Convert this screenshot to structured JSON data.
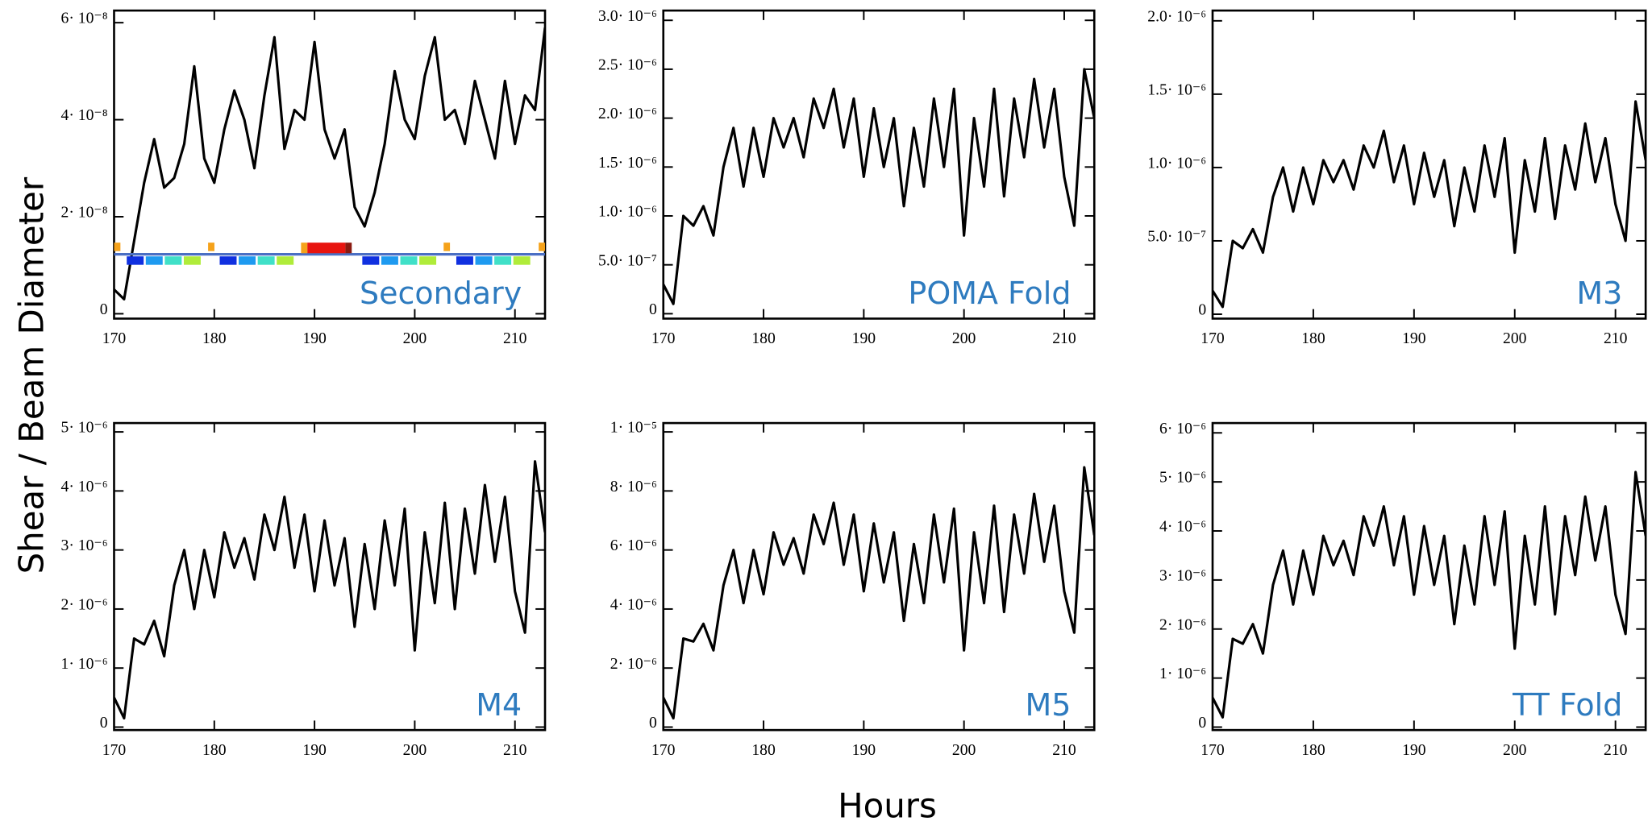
{
  "y_label": "Shear / Beam Diameter",
  "x_label": "Hours",
  "chart_data": [
    {
      "type": "line",
      "title": "Secondary",
      "color": "#000000",
      "x": [
        170,
        171,
        172,
        173,
        174,
        175,
        176,
        177,
        178,
        179,
        180,
        181,
        182,
        183,
        184,
        185,
        186,
        187,
        188,
        189,
        190,
        191,
        192,
        193,
        194,
        195,
        196,
        197,
        198,
        199,
        200,
        201,
        202,
        203,
        204,
        205,
        206,
        207,
        208,
        209,
        210,
        211,
        212,
        213
      ],
      "values": [
        5e-09,
        3e-09,
        1.5e-08,
        2.7e-08,
        3.6e-08,
        2.6e-08,
        2.8e-08,
        3.5e-08,
        5.1e-08,
        3.2e-08,
        2.7e-08,
        3.8e-08,
        4.6e-08,
        4e-08,
        3e-08,
        4.5e-08,
        5.7e-08,
        3.4e-08,
        4.2e-08,
        4e-08,
        5.6e-08,
        3.8e-08,
        3.2e-08,
        3.8e-08,
        2.2e-08,
        1.8e-08,
        2.5e-08,
        3.5e-08,
        5e-08,
        4e-08,
        3.6e-08,
        4.9e-08,
        5.7e-08,
        4e-08,
        4.2e-08,
        3.5e-08,
        4.8e-08,
        4e-08,
        3.2e-08,
        4.8e-08,
        3.5e-08,
        4.5e-08,
        4.2e-08,
        5.9e-08
      ],
      "xlim": [
        170,
        213
      ],
      "xticks": [
        170,
        180,
        190,
        200,
        210
      ],
      "ylim": [
        -1e-09,
        6.25e-08
      ],
      "yticks": [
        0,
        {
          "value": 2e-08,
          "label": "2· 10⁻⁸"
        },
        {
          "value": 4e-08,
          "label": "4· 10⁻⁸"
        },
        {
          "value": 6e-08,
          "label": "6· 10⁻⁸"
        }
      ]
    },
    {
      "type": "line",
      "title": "POMA Fold",
      "color": "#000000",
      "x": [
        170,
        171,
        172,
        173,
        174,
        175,
        176,
        177,
        178,
        179,
        180,
        181,
        182,
        183,
        184,
        185,
        186,
        187,
        188,
        189,
        190,
        191,
        192,
        193,
        194,
        195,
        196,
        197,
        198,
        199,
        200,
        201,
        202,
        203,
        204,
        205,
        206,
        207,
        208,
        209,
        210,
        211,
        212,
        213
      ],
      "values": [
        3e-07,
        1e-07,
        1e-06,
        9e-07,
        1.1e-06,
        8e-07,
        1.5e-06,
        1.9e-06,
        1.3e-06,
        1.9e-06,
        1.4e-06,
        2e-06,
        1.7e-06,
        2e-06,
        1.6e-06,
        2.2e-06,
        1.9e-06,
        2.3e-06,
        1.7e-06,
        2.2e-06,
        1.4e-06,
        2.1e-06,
        1.5e-06,
        2e-06,
        1.1e-06,
        1.9e-06,
        1.3e-06,
        2.2e-06,
        1.5e-06,
        2.3e-06,
        8e-07,
        2e-06,
        1.3e-06,
        2.3e-06,
        1.2e-06,
        2.2e-06,
        1.6e-06,
        2.4e-06,
        1.7e-06,
        2.3e-06,
        1.4e-06,
        9e-07,
        2.5e-06,
        2e-06
      ],
      "xlim": [
        170,
        213
      ],
      "xticks": [
        170,
        180,
        190,
        200,
        210
      ],
      "ylim": [
        -5e-08,
        3.1e-06
      ],
      "yticks": [
        0,
        {
          "value": 5e-07,
          "label": "5.0· 10⁻⁷"
        },
        {
          "value": 1e-06,
          "label": "1.0· 10⁻⁶"
        },
        {
          "value": 1.5e-06,
          "label": "1.5· 10⁻⁶"
        },
        {
          "value": 2e-06,
          "label": "2.0· 10⁻⁶"
        },
        {
          "value": 2.5e-06,
          "label": "2.5· 10⁻⁶"
        },
        {
          "value": 3e-06,
          "label": "3.0· 10⁻⁶"
        }
      ]
    },
    {
      "type": "line",
      "title": "M3",
      "color": "#000000",
      "x": [
        170,
        171,
        172,
        173,
        174,
        175,
        176,
        177,
        178,
        179,
        180,
        181,
        182,
        183,
        184,
        185,
        186,
        187,
        188,
        189,
        190,
        191,
        192,
        193,
        194,
        195,
        196,
        197,
        198,
        199,
        200,
        201,
        202,
        203,
        204,
        205,
        206,
        207,
        208,
        209,
        210,
        211,
        212,
        213
      ],
      "values": [
        1.6e-07,
        5e-08,
        5e-07,
        4.5e-07,
        5.8e-07,
        4.2e-07,
        8e-07,
        1e-06,
        7e-07,
        1e-06,
        7.5e-07,
        1.05e-06,
        9e-07,
        1.05e-06,
        8.5e-07,
        1.15e-06,
        1e-06,
        1.25e-06,
        9e-07,
        1.15e-06,
        7.5e-07,
        1.1e-06,
        8e-07,
        1.05e-06,
        6e-07,
        1e-06,
        7e-07,
        1.15e-06,
        8e-07,
        1.2e-06,
        4.2e-07,
        1.05e-06,
        7e-07,
        1.2e-06,
        6.5e-07,
        1.15e-06,
        8.5e-07,
        1.3e-06,
        9e-07,
        1.2e-06,
        7.5e-07,
        5e-07,
        1.45e-06,
        1.05e-06
      ],
      "xlim": [
        170,
        213
      ],
      "xticks": [
        170,
        180,
        190,
        200,
        210
      ],
      "ylim": [
        -3e-08,
        2.07e-06
      ],
      "yticks": [
        0,
        {
          "value": 5e-07,
          "label": "5.0· 10⁻⁷"
        },
        {
          "value": 1e-06,
          "label": "1.0· 10⁻⁶"
        },
        {
          "value": 1.5e-06,
          "label": "1.5· 10⁻⁶"
        },
        {
          "value": 2e-06,
          "label": "2.0· 10⁻⁶"
        }
      ]
    },
    {
      "type": "line",
      "title": "M4",
      "color": "#000000",
      "x": [
        170,
        171,
        172,
        173,
        174,
        175,
        176,
        177,
        178,
        179,
        180,
        181,
        182,
        183,
        184,
        185,
        186,
        187,
        188,
        189,
        190,
        191,
        192,
        193,
        194,
        195,
        196,
        197,
        198,
        199,
        200,
        201,
        202,
        203,
        204,
        205,
        206,
        207,
        208,
        209,
        210,
        211,
        212,
        213
      ],
      "values": [
        5e-07,
        1.5e-07,
        1.5e-06,
        1.4e-06,
        1.8e-06,
        1.2e-06,
        2.4e-06,
        3e-06,
        2e-06,
        3e-06,
        2.2e-06,
        3.3e-06,
        2.7e-06,
        3.2e-06,
        2.5e-06,
        3.6e-06,
        3e-06,
        3.9e-06,
        2.7e-06,
        3.6e-06,
        2.3e-06,
        3.5e-06,
        2.4e-06,
        3.2e-06,
        1.7e-06,
        3.1e-06,
        2e-06,
        3.5e-06,
        2.4e-06,
        3.7e-06,
        1.3e-06,
        3.3e-06,
        2.1e-06,
        3.8e-06,
        2e-06,
        3.7e-06,
        2.6e-06,
        4.1e-06,
        2.8e-06,
        3.9e-06,
        2.3e-06,
        1.6e-06,
        4.5e-06,
        3.3e-06
      ],
      "xlim": [
        170,
        213
      ],
      "xticks": [
        170,
        180,
        190,
        200,
        210
      ],
      "ylim": [
        -5e-08,
        5.15e-06
      ],
      "yticks": [
        0,
        {
          "value": 1e-06,
          "label": "1· 10⁻⁶"
        },
        {
          "value": 2e-06,
          "label": "2· 10⁻⁶"
        },
        {
          "value": 3e-06,
          "label": "3· 10⁻⁶"
        },
        {
          "value": 4e-06,
          "label": "4· 10⁻⁶"
        },
        {
          "value": 5e-06,
          "label": "5· 10⁻⁶"
        }
      ]
    },
    {
      "type": "line",
      "title": "M5",
      "color": "#000000",
      "x": [
        170,
        171,
        172,
        173,
        174,
        175,
        176,
        177,
        178,
        179,
        180,
        181,
        182,
        183,
        184,
        185,
        186,
        187,
        188,
        189,
        190,
        191,
        192,
        193,
        194,
        195,
        196,
        197,
        198,
        199,
        200,
        201,
        202,
        203,
        204,
        205,
        206,
        207,
        208,
        209,
        210,
        211,
        212,
        213
      ],
      "values": [
        1e-06,
        3e-07,
        3e-06,
        2.9e-06,
        3.5e-06,
        2.6e-06,
        4.8e-06,
        6e-06,
        4.2e-06,
        6e-06,
        4.5e-06,
        6.6e-06,
        5.5e-06,
        6.4e-06,
        5.2e-06,
        7.2e-06,
        6.2e-06,
        7.6e-06,
        5.5e-06,
        7.2e-06,
        4.6e-06,
        6.9e-06,
        4.9e-06,
        6.6e-06,
        3.6e-06,
        6.2e-06,
        4.2e-06,
        7.2e-06,
        4.9e-06,
        7.4e-06,
        2.6e-06,
        6.6e-06,
        4.2e-06,
        7.5e-06,
        3.9e-06,
        7.2e-06,
        5.2e-06,
        7.9e-06,
        5.6e-06,
        7.5e-06,
        4.6e-06,
        3.2e-06,
        8.8e-06,
        6.5e-06
      ],
      "xlim": [
        170,
        213
      ],
      "xticks": [
        170,
        180,
        190,
        200,
        210
      ],
      "ylim": [
        -1e-07,
        1.03e-05
      ],
      "yticks": [
        0,
        {
          "value": 2e-06,
          "label": "2· 10⁻⁶"
        },
        {
          "value": 4e-06,
          "label": "4· 10⁻⁶"
        },
        {
          "value": 6e-06,
          "label": "6· 10⁻⁶"
        },
        {
          "value": 8e-06,
          "label": "8· 10⁻⁶"
        },
        {
          "value": 1e-05,
          "label": "1· 10⁻⁵"
        }
      ]
    },
    {
      "type": "line",
      "title": "TT Fold",
      "color": "#000000",
      "x": [
        170,
        171,
        172,
        173,
        174,
        175,
        176,
        177,
        178,
        179,
        180,
        181,
        182,
        183,
        184,
        185,
        186,
        187,
        188,
        189,
        190,
        191,
        192,
        193,
        194,
        195,
        196,
        197,
        198,
        199,
        200,
        201,
        202,
        203,
        204,
        205,
        206,
        207,
        208,
        209,
        210,
        211,
        212,
        213
      ],
      "values": [
        6e-07,
        2e-07,
        1.8e-06,
        1.7e-06,
        2.1e-06,
        1.5e-06,
        2.9e-06,
        3.6e-06,
        2.5e-06,
        3.6e-06,
        2.7e-06,
        3.9e-06,
        3.3e-06,
        3.8e-06,
        3.1e-06,
        4.3e-06,
        3.7e-06,
        4.5e-06,
        3.3e-06,
        4.3e-06,
        2.7e-06,
        4.1e-06,
        2.9e-06,
        3.9e-06,
        2.1e-06,
        3.7e-06,
        2.5e-06,
        4.3e-06,
        2.9e-06,
        4.4e-06,
        1.6e-06,
        3.9e-06,
        2.5e-06,
        4.5e-06,
        2.3e-06,
        4.3e-06,
        3.1e-06,
        4.7e-06,
        3.4e-06,
        4.5e-06,
        2.7e-06,
        1.9e-06,
        5.2e-06,
        3.9e-06
      ],
      "xlim": [
        170,
        213
      ],
      "xticks": [
        170,
        180,
        190,
        200,
        210
      ],
      "ylim": [
        -6e-08,
        6.2e-06
      ],
      "yticks": [
        0,
        {
          "value": 1e-06,
          "label": "1· 10⁻⁶"
        },
        {
          "value": 2e-06,
          "label": "2· 10⁻⁶"
        },
        {
          "value": 3e-06,
          "label": "3· 10⁻⁶"
        },
        {
          "value": 4e-06,
          "label": "4· 10⁻⁶"
        },
        {
          "value": 5e-06,
          "label": "5· 10⁻⁶"
        },
        {
          "value": 6e-06,
          "label": "6· 10⁻⁶"
        }
      ]
    }
  ]
}
